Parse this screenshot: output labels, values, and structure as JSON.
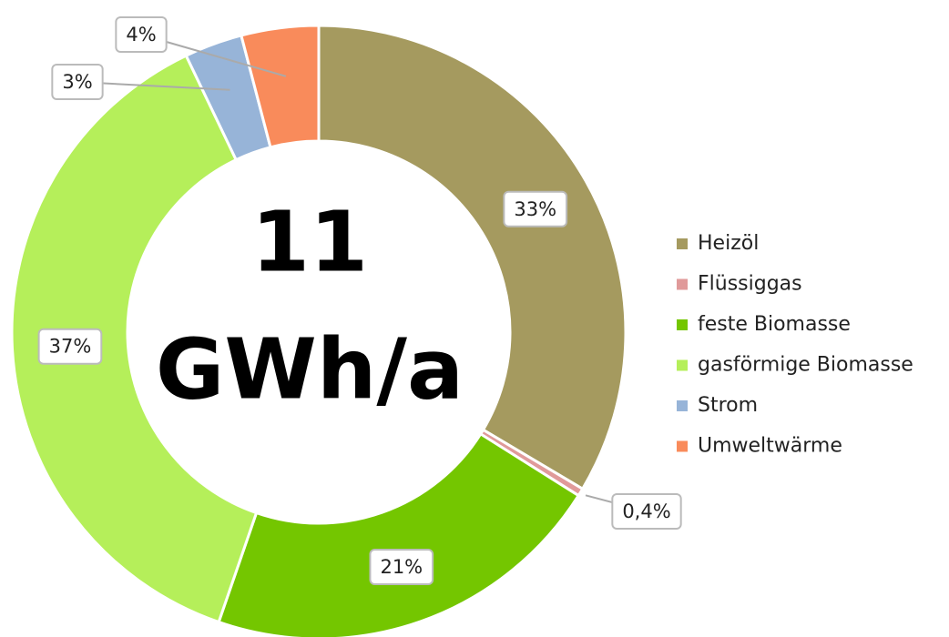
{
  "chart_data": {
    "type": "pie",
    "categories": [
      "Heizöl",
      "Flüssiggas",
      "feste Biomasse",
      "gasförmige Biomasse",
      "Strom",
      "Umweltwärme"
    ],
    "values": [
      33,
      0.4,
      21,
      37,
      3,
      4
    ],
    "value_labels": [
      "33%",
      "0,4%",
      "21%",
      "37%",
      "3%",
      "4%"
    ],
    "colors": [
      "#a59a5f",
      "#e09a9a",
      "#74c600",
      "#b5ef5a",
      "#97b4d8",
      "#f98b5b"
    ],
    "center_text": [
      "11",
      "GWh/a"
    ],
    "legend": "right"
  }
}
